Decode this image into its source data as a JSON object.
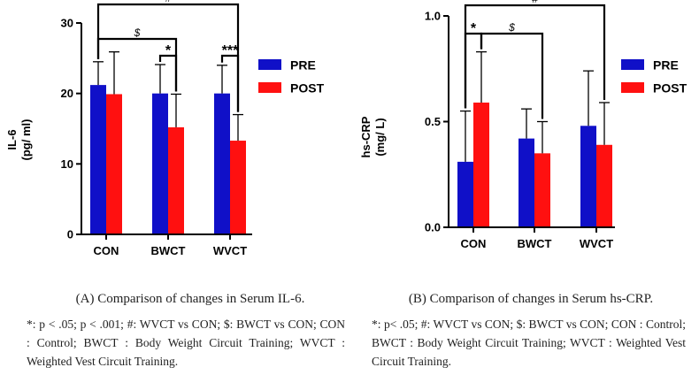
{
  "colors": {
    "pre": "#1010c8",
    "post": "#ff1010",
    "axis": "#000000",
    "bracket": "#000000"
  },
  "chart_data": [
    {
      "type": "bar",
      "title": "",
      "ylabel": "IL-6 (pg/ ml)",
      "ylabel_lines": [
        "IL-6",
        "(pg/ ml)"
      ],
      "xlabel": "",
      "categories": [
        "CON",
        "BWCT",
        "WVCT"
      ],
      "ylim": [
        0,
        30
      ],
      "yticks": [
        0,
        10,
        20,
        30
      ],
      "ytick_labels": [
        "0",
        "10",
        "20",
        "30"
      ],
      "series": [
        {
          "name": "PRE",
          "values": [
            21.2,
            20.0,
            20.0
          ],
          "errors": [
            3.3,
            4.1,
            4.0
          ]
        },
        {
          "name": "POST",
          "values": [
            19.9,
            15.2,
            13.3
          ],
          "errors": [
            6.0,
            4.7,
            3.7
          ]
        }
      ],
      "legend": [
        "PRE",
        "POST"
      ],
      "legend_position": "right",
      "annotations": [
        {
          "label": "#",
          "from": [
            0,
            0
          ],
          "to": [
            2,
            1
          ]
        },
        {
          "label": "$",
          "from": [
            0,
            0
          ],
          "to": [
            1,
            1
          ]
        },
        {
          "label": "*",
          "from": [
            1,
            0
          ],
          "to": [
            1,
            1
          ]
        },
        {
          "label": "***",
          "from": [
            2,
            0
          ],
          "to": [
            2,
            1
          ]
        }
      ]
    },
    {
      "type": "bar",
      "title": "",
      "ylabel": "hs-CRP (mg/ L)",
      "ylabel_lines": [
        "hs-CRP",
        "(mg/ L)"
      ],
      "xlabel": "",
      "categories": [
        "CON",
        "BWCT",
        "WVCT"
      ],
      "ylim": [
        0,
        1.0
      ],
      "yticks": [
        0,
        0.5,
        1.0
      ],
      "ytick_labels": [
        "0.0",
        "0.5",
        "1.0"
      ],
      "series": [
        {
          "name": "PRE",
          "values": [
            0.31,
            0.42,
            0.48
          ],
          "errors": [
            0.24,
            0.14,
            0.26
          ]
        },
        {
          "name": "POST",
          "values": [
            0.59,
            0.35,
            0.39
          ],
          "errors": [
            0.24,
            0.15,
            0.2
          ]
        }
      ],
      "legend": [
        "PRE",
        "POST"
      ],
      "legend_position": "right",
      "annotations": [
        {
          "label": "#",
          "from": [
            0,
            0
          ],
          "to": [
            2,
            1
          ]
        },
        {
          "label": "*",
          "from": [
            0,
            0
          ],
          "to": [
            0,
            1
          ]
        },
        {
          "label": "$",
          "from": [
            0,
            1
          ],
          "to": [
            1,
            1
          ]
        }
      ]
    }
  ],
  "captions": {
    "a_title": "(A) Comparison of changes in Serum IL-6.",
    "a_note": "*: p < .05; p < .001; #: WVCT vs CON; $: BWCT vs CON; CON : Control; BWCT : Body Weight Circuit Training; WVCT : Weighted Vest Circuit Training.",
    "b_title": "(B) Comparison of changes in Serum hs-CRP.",
    "b_note": "*: p< .05; #: WVCT vs CON; $: BWCT vs CON; CON : Control; BWCT : Body Weight Circuit Training; WVCT : Weighted Vest Circuit Training."
  }
}
